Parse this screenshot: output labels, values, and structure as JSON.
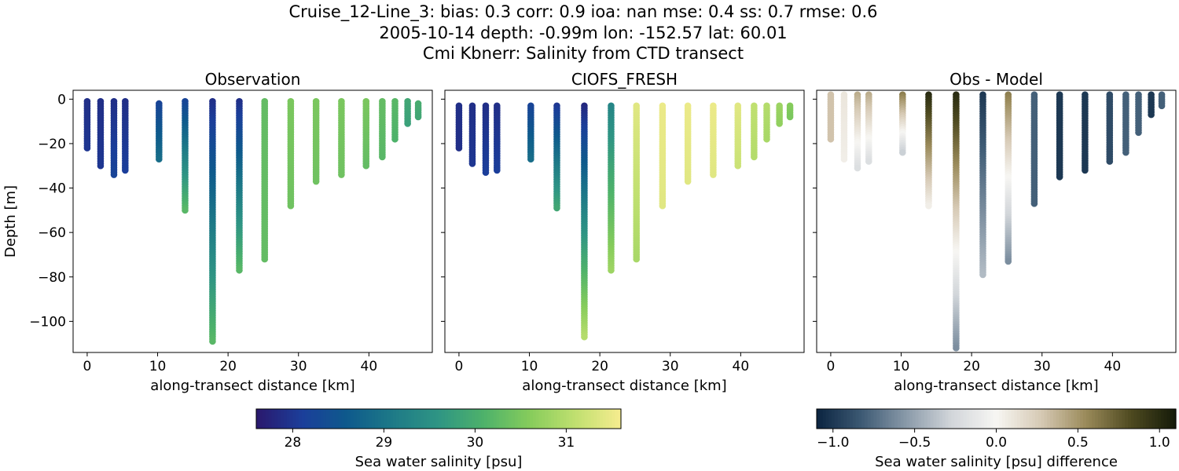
{
  "figure": {
    "title_lines": [
      "Cruise_12-Line_3: bias: 0.3  corr: 0.9  ioa: nan  mse: 0.4  ss: 0.7  rmse: 0.6",
      "2005-10-14 depth: -0.99m lon: -152.57 lat: 60.01",
      "Cmi Kbnerr: Salinity from CTD transect"
    ]
  },
  "chart_data": [
    {
      "type": "scatter",
      "title": "Observation",
      "xlabel": "along-transect distance [km]",
      "ylabel": "Depth [m]",
      "xlim": [
        -2,
        49
      ],
      "ylim": [
        -114,
        4
      ],
      "xticks": [
        0,
        10,
        20,
        30,
        40
      ],
      "yticks": [
        0,
        -20,
        -40,
        -60,
        -80,
        -100
      ],
      "colormap": "haline",
      "profiles": [
        {
          "x": 0,
          "top": -1,
          "bottom": -22,
          "top_value": 27.9,
          "bottom_value": 28.0
        },
        {
          "x": 1.9,
          "top": -1,
          "bottom": -30,
          "top_value": 27.9,
          "bottom_value": 28.0
        },
        {
          "x": 3.8,
          "top": -1,
          "bottom": -34,
          "top_value": 27.9,
          "bottom_value": 28.2
        },
        {
          "x": 5.4,
          "top": -1,
          "bottom": -32,
          "top_value": 27.9,
          "bottom_value": 28.1
        },
        {
          "x": 10.2,
          "top": -2,
          "bottom": -27,
          "top_value": 28.2,
          "bottom_value": 28.9
        },
        {
          "x": 13.9,
          "top": -1,
          "bottom": -50,
          "top_value": 28.2,
          "bottom_value": 30.2
        },
        {
          "x": 17.8,
          "top": -1,
          "bottom": -109,
          "top_value": 27.9,
          "bottom_value": 30.2
        },
        {
          "x": 21.6,
          "top": -1,
          "bottom": -77,
          "top_value": 27.9,
          "bottom_value": 30.2
        },
        {
          "x": 25.2,
          "top": -1,
          "bottom": -72,
          "top_value": 30.3,
          "bottom_value": 30.3
        },
        {
          "x": 28.9,
          "top": -1,
          "bottom": -48,
          "top_value": 30.5,
          "bottom_value": 30.4
        },
        {
          "x": 32.5,
          "top": -1,
          "bottom": -37,
          "top_value": 30.5,
          "bottom_value": 30.4
        },
        {
          "x": 36.1,
          "top": -1,
          "bottom": -34,
          "top_value": 30.5,
          "bottom_value": 30.4
        },
        {
          "x": 39.6,
          "top": -1,
          "bottom": -30,
          "top_value": 30.5,
          "bottom_value": 30.3
        },
        {
          "x": 41.9,
          "top": -1,
          "bottom": -26,
          "top_value": 30.3,
          "bottom_value": 30.2
        },
        {
          "x": 43.7,
          "top": -1,
          "bottom": -18,
          "top_value": 30.2,
          "bottom_value": 30.1
        },
        {
          "x": 45.5,
          "top": -1,
          "bottom": -11,
          "top_value": 29.9,
          "bottom_value": 29.8
        },
        {
          "x": 47.0,
          "top": -2,
          "bottom": -8,
          "top_value": 30.0,
          "bottom_value": 29.9
        }
      ]
    },
    {
      "type": "scatter",
      "title": "CIOFS_FRESH",
      "xlabel": "along-transect distance [km]",
      "ylabel": "",
      "xlim": [
        -2,
        49
      ],
      "ylim": [
        -114,
        4
      ],
      "xticks": [
        0,
        10,
        20,
        30,
        40
      ],
      "colormap": "haline",
      "profiles": [
        {
          "x": 0,
          "top": -3,
          "bottom": -22,
          "top_value": 27.9,
          "bottom_value": 27.9
        },
        {
          "x": 1.9,
          "top": -3,
          "bottom": -29,
          "top_value": 27.9,
          "bottom_value": 28.0
        },
        {
          "x": 3.8,
          "top": -3,
          "bottom": -33,
          "top_value": 27.9,
          "bottom_value": 28.1
        },
        {
          "x": 5.4,
          "top": -3,
          "bottom": -32,
          "top_value": 27.9,
          "bottom_value": 28.1
        },
        {
          "x": 10.2,
          "top": -3,
          "bottom": -27,
          "top_value": 28.2,
          "bottom_value": 28.9
        },
        {
          "x": 13.9,
          "top": -3,
          "bottom": -49,
          "top_value": 28.0,
          "bottom_value": 29.9
        },
        {
          "x": 17.8,
          "top": -3,
          "bottom": -107,
          "top_value": 27.8,
          "bottom_value": 31.0
        },
        {
          "x": 21.6,
          "top": -3,
          "bottom": -77,
          "top_value": 29.3,
          "bottom_value": 30.8
        },
        {
          "x": 25.2,
          "top": -3,
          "bottom": -72,
          "top_value": 31.4,
          "bottom_value": 30.9
        },
        {
          "x": 28.9,
          "top": -3,
          "bottom": -48,
          "top_value": 31.5,
          "bottom_value": 31.4
        },
        {
          "x": 32.5,
          "top": -3,
          "bottom": -37,
          "top_value": 31.5,
          "bottom_value": 31.4
        },
        {
          "x": 36.1,
          "top": -3,
          "bottom": -34,
          "top_value": 31.5,
          "bottom_value": 31.4
        },
        {
          "x": 39.6,
          "top": -3,
          "bottom": -30,
          "top_value": 31.4,
          "bottom_value": 31.2
        },
        {
          "x": 41.9,
          "top": -3,
          "bottom": -26,
          "top_value": 31.1,
          "bottom_value": 31.0
        },
        {
          "x": 43.7,
          "top": -3,
          "bottom": -18,
          "top_value": 31.0,
          "bottom_value": 30.9
        },
        {
          "x": 45.5,
          "top": -3,
          "bottom": -11,
          "top_value": 30.8,
          "bottom_value": 30.7
        },
        {
          "x": 47.0,
          "top": -3,
          "bottom": -8,
          "top_value": 30.6,
          "bottom_value": 30.5
        }
      ]
    },
    {
      "type": "scatter",
      "title": "Obs - Model",
      "xlabel": "along-transect distance [km]",
      "ylabel": "",
      "xlim": [
        -2,
        49
      ],
      "ylim": [
        -114,
        4
      ],
      "xticks": [
        0,
        10,
        20,
        30,
        40
      ],
      "colormap": "diff",
      "profiles": [
        {
          "x": 0,
          "top": 2,
          "bottom": -18,
          "top_value": 0.3,
          "bottom_value": 0.3
        },
        {
          "x": 1.9,
          "top": 2,
          "bottom": -27,
          "top_value": 0.1,
          "bottom_value": 0.05
        },
        {
          "x": 3.8,
          "top": 2,
          "bottom": -31,
          "top_value": 0.4,
          "bottom_value": -0.2
        },
        {
          "x": 5.4,
          "top": 2,
          "bottom": -28,
          "top_value": 0.4,
          "bottom_value": -0.2
        },
        {
          "x": 10.2,
          "top": 2,
          "bottom": -24,
          "top_value": 0.6,
          "bottom_value": -0.3
        },
        {
          "x": 13.9,
          "top": 2,
          "bottom": -48,
          "top_value": 1.0,
          "bottom_value": 0.05
        },
        {
          "x": 17.8,
          "top": 2,
          "bottom": -112,
          "top_value": 1.0,
          "bottom_value": -0.6
        },
        {
          "x": 21.6,
          "top": 2,
          "bottom": -79,
          "top_value": -1.0,
          "bottom_value": -0.4
        },
        {
          "x": 25.2,
          "top": 2,
          "bottom": -73,
          "top_value": 0.6,
          "bottom_value": -0.6
        },
        {
          "x": 28.9,
          "top": 2,
          "bottom": -47,
          "top_value": -0.8,
          "bottom_value": -0.8
        },
        {
          "x": 32.5,
          "top": 2,
          "bottom": -35,
          "top_value": -1.0,
          "bottom_value": -1.0
        },
        {
          "x": 36.1,
          "top": 2,
          "bottom": -32,
          "top_value": -1.0,
          "bottom_value": -1.0
        },
        {
          "x": 39.6,
          "top": 2,
          "bottom": -28,
          "top_value": -0.9,
          "bottom_value": -0.9
        },
        {
          "x": 41.9,
          "top": 2,
          "bottom": -24,
          "top_value": -0.8,
          "bottom_value": -0.8
        },
        {
          "x": 43.7,
          "top": 2,
          "bottom": -15,
          "top_value": -0.8,
          "bottom_value": -0.8
        },
        {
          "x": 45.5,
          "top": 2,
          "bottom": -7,
          "top_value": -1.0,
          "bottom_value": -1.0
        },
        {
          "x": 47.0,
          "top": 2,
          "bottom": -3,
          "top_value": -0.8,
          "bottom_value": -0.8
        }
      ]
    }
  ],
  "colorbars": [
    {
      "label": "Sea water salinity [psu]",
      "range": [
        27.6,
        31.6
      ],
      "ticks": [
        "28",
        "29",
        "30",
        "31"
      ],
      "tick_values": [
        28,
        29,
        30,
        31
      ],
      "colormap": "haline",
      "colors": [
        "#2a186c",
        "#1b3e9a",
        "#0e5a8c",
        "#1e7a87",
        "#2f9584",
        "#4eb26a",
        "#86cc5b",
        "#c0e070",
        "#f6ec8f"
      ]
    },
    {
      "label": "Sea water salinity [psu] difference",
      "range": [
        -1.1,
        1.1
      ],
      "ticks": [
        "−1.0",
        "−0.5",
        "0.0",
        "0.5",
        "1.0"
      ],
      "tick_values": [
        -1.0,
        -0.5,
        0.0,
        0.5,
        1.0
      ],
      "colormap": "diff",
      "colors": [
        "#0b2440",
        "#3d5a74",
        "#8a9aa9",
        "#d2d6da",
        "#f7f6f3",
        "#d6c9b4",
        "#9a8a5a",
        "#4e4a20",
        "#141a09"
      ]
    }
  ]
}
